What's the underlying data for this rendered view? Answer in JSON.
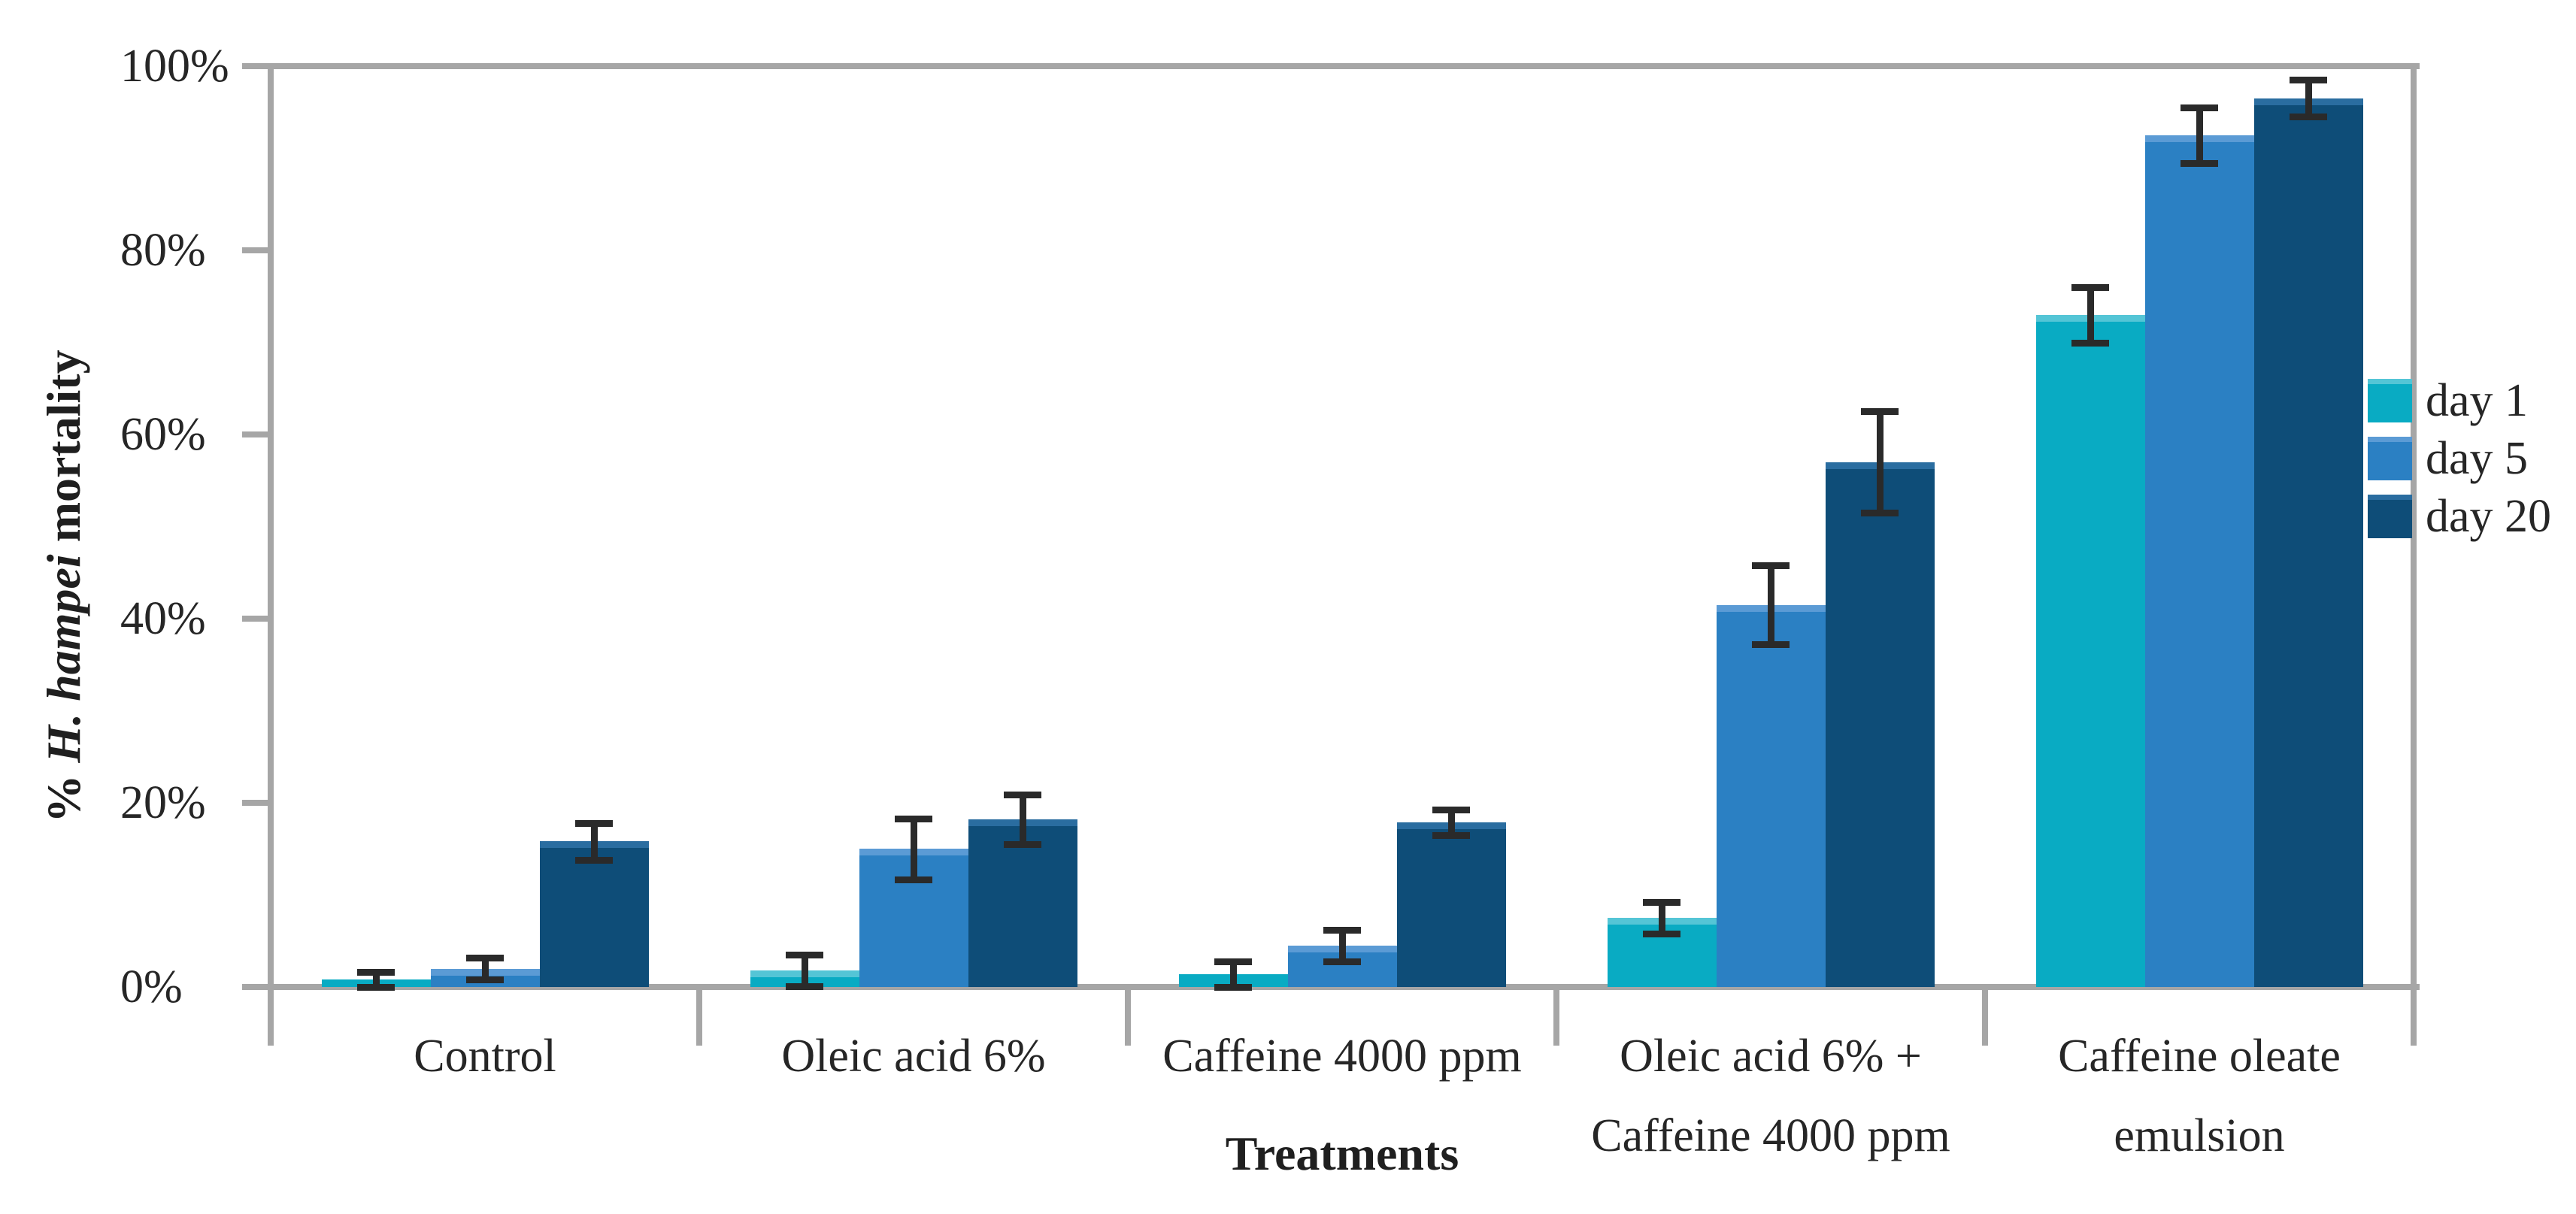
{
  "chart_data": {
    "type": "bar",
    "title": "",
    "xlabel": "Treatments",
    "ylabel": {
      "prefix": "% ",
      "italic": "H. hampei",
      "suffix": " mortality"
    },
    "y_axis": {
      "ticks": [
        "0%",
        "20%",
        "40%",
        "60%",
        "80%",
        "100%"
      ],
      "min": 0,
      "max": 100,
      "tick_step": 20,
      "unit": "percent"
    },
    "categories": [
      "Control",
      "Oleic acid 6%",
      "Caffeine 4000 ppm",
      "Oleic acid 6% +\nCaffeine 4000 ppm",
      "Caffeine oleate\nemulsion"
    ],
    "series": [
      {
        "name": "day 1",
        "color": "#09abc3",
        "edge_color": "#54c5d6",
        "values": [
          0.8,
          1.8,
          1.4,
          7.5,
          73.0
        ],
        "errors": [
          0.8,
          1.7,
          1.4,
          1.7,
          3.0
        ]
      },
      {
        "name": "day 5",
        "color": "#2b80c3",
        "edge_color": "#5b9bd5",
        "values": [
          2.0,
          15.0,
          4.5,
          41.5,
          92.5
        ],
        "errors": [
          1.2,
          3.3,
          1.7,
          4.3,
          3.0
        ]
      },
      {
        "name": "day 20",
        "color": "#0e4d78",
        "edge_color": "#2a6da0",
        "values": [
          15.8,
          18.2,
          17.9,
          57.0,
          96.5
        ],
        "errors": [
          2.0,
          2.7,
          1.4,
          5.5,
          2.0
        ]
      }
    ],
    "legend_position": "right",
    "grid": false,
    "error_bar_color": "#2a2a2a",
    "axis_color": "#a6a6a6",
    "text_color": "#262626",
    "background": "#ffffff"
  }
}
